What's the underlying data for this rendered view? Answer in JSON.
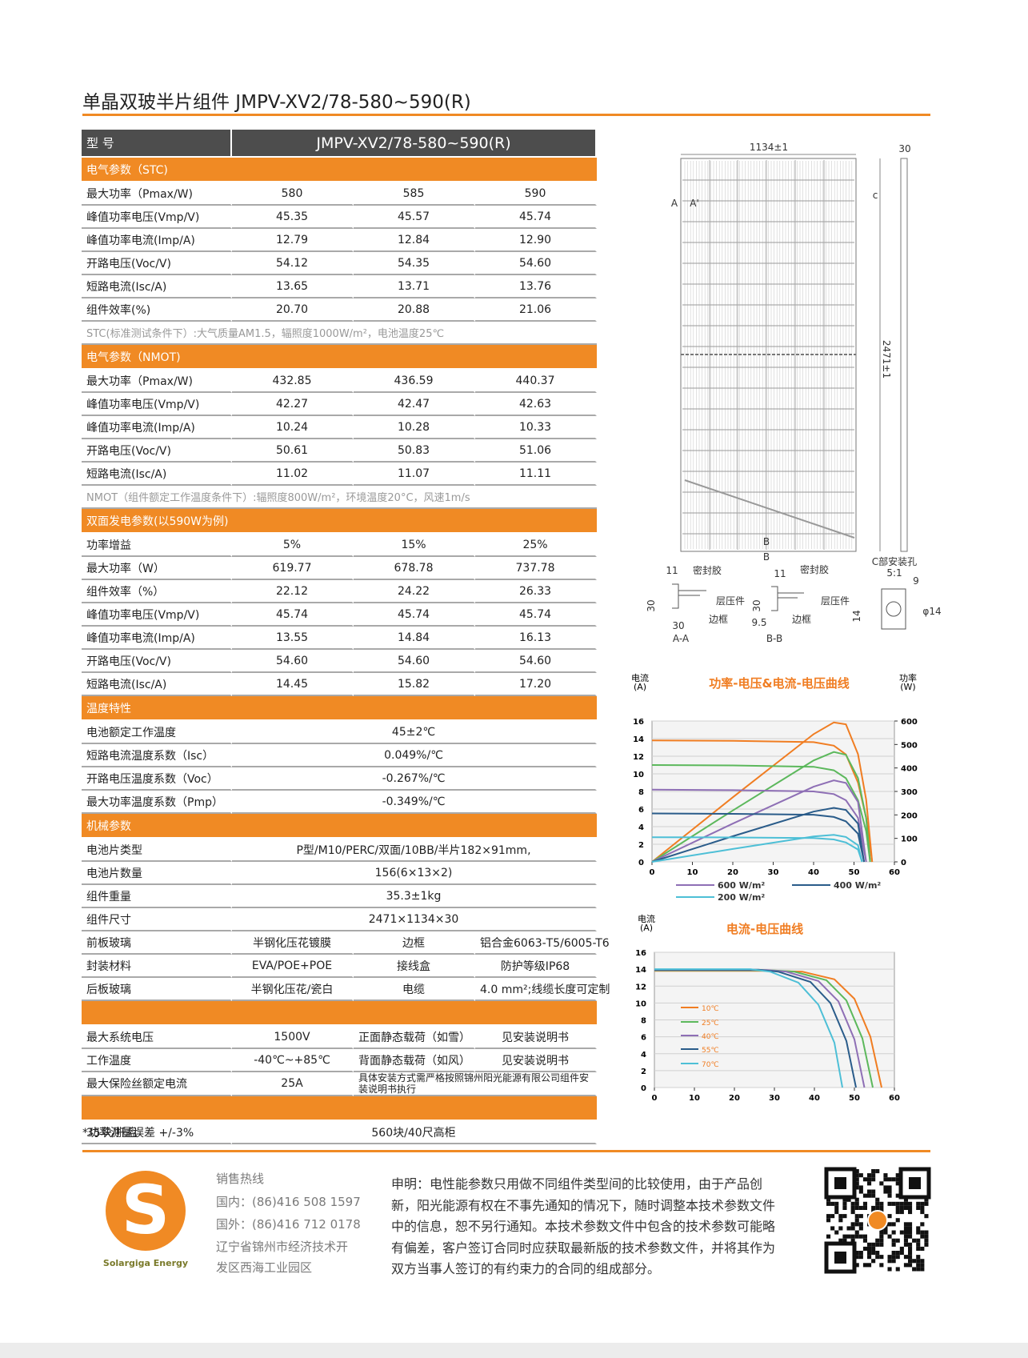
{
  "header": {
    "title": "单晶双玻半片组件  JMPV-XV2/78-580~590(R)"
  },
  "table": {
    "header": [
      "型 号",
      "JMPV-XV2/78-580~590(R)"
    ],
    "sections": [
      {
        "title": "电气参数（STC)",
        "rows": [
          [
            "最大功率（Pmax/W)",
            "580",
            "585",
            "590"
          ],
          [
            "峰值功率电压(Vmp/V)",
            "45.35",
            "45.57",
            "45.74"
          ],
          [
            "峰值功率电流(Imp/A)",
            "12.79",
            "12.84",
            "12.90"
          ],
          [
            "开路电压(Voc/V)",
            "54.12",
            "54.35",
            "54.60"
          ],
          [
            "短路电流(Isc/A)",
            "13.65",
            "13.71",
            "13.76"
          ],
          [
            "组件效率(%)",
            "20.70",
            "20.88",
            "21.06"
          ]
        ],
        "note": "STC(标准测试条件下）:大气质量AM1.5，辐照度1000W/m²，电池温度25℃"
      },
      {
        "title": "电气参数（NMOT)",
        "rows": [
          [
            "最大功率（Pmax/W)",
            "432.85",
            "436.59",
            "440.37"
          ],
          [
            "峰值功率电压(Vmp/V)",
            "42.27",
            "42.47",
            "42.63"
          ],
          [
            "峰值功率电流(Imp/A)",
            "10.24",
            "10.28",
            "10.33"
          ],
          [
            "开路电压(Voc/V)",
            "50.61",
            "50.83",
            "51.06"
          ],
          [
            "短路电流(Isc/A)",
            "11.02",
            "11.07",
            "11.11"
          ]
        ],
        "note": "NMOT（组件额定工作温度条件下）:辐照度800W/m²，环境温度20°C，风速1m/s"
      },
      {
        "title": "双面发电参数(以590W为例)",
        "rows": [
          [
            "功率增益",
            "5%",
            "15%",
            "25%"
          ],
          [
            "最大功率（W）",
            "619.77",
            "678.78",
            "737.78"
          ],
          [
            "组件效率（%）",
            "22.12",
            "24.22",
            "26.33"
          ],
          [
            "峰值功率电压(Vmp/V)",
            "45.74",
            "45.74",
            "45.74"
          ],
          [
            "峰值功率电流(Imp/A)",
            "13.55",
            "14.84",
            "16.13"
          ],
          [
            "开路电压(Voc/V)",
            "54.60",
            "54.60",
            "54.60"
          ],
          [
            "短路电流(Isc/A)",
            "14.45",
            "15.82",
            "17.20"
          ]
        ]
      },
      {
        "title": "温度特性",
        "rows": [
          [
            "电池额定工作温度",
            "45±2℃"
          ],
          [
            "短路电流温度系数（Isc）",
            "0.049%/℃"
          ],
          [
            "开路电压温度系数（Voc）",
            "-0.267%/℃"
          ],
          [
            "最大功率温度系数（Pmp）",
            "-0.349%/℃"
          ]
        ]
      },
      {
        "title": "机械参数",
        "rows": [
          [
            "电池片类型",
            "P型/M10/PERC/双面/10BB/半片182×91mm,"
          ],
          [
            "电池片数量",
            "156(6×13×2)"
          ],
          [
            "组件重量",
            "35.3±1kg"
          ],
          [
            "组件尺寸",
            "2471×1134×30"
          ],
          [
            "前板玻璃",
            "半钢化压花镀膜",
            "边框",
            "铝合金6063-T5/6005-T6"
          ],
          [
            "封装材料",
            "EVA/POE+POE",
            "接线盒",
            "防护等级IP68"
          ],
          [
            "后板玻璃",
            "半钢化压花/瓷白",
            "电缆",
            "4.0 mm²;线缆长度可定制"
          ]
        ]
      },
      {
        "rows": [
          [
            "最大系统电压",
            "1500V",
            "正面静态载荷（如雪）",
            "见安装说明书"
          ],
          [
            "工作温度",
            "-40℃~+85℃",
            "背面静态载荷（如风）",
            "见安装说明书"
          ],
          [
            "最大保险丝额定电流",
            "25A",
            "具体安装方式需严格按照锦州阳光能源有限公司组件安装说明书执行"
          ]
        ]
      },
      {
        "rows": [
          [
            "35块/托盘",
            "560块/40尺高柜"
          ]
        ]
      }
    ]
  },
  "footnote": "*功率测量误差  +/-3%",
  "drawing": {
    "labels": [
      "1134±1",
      "30",
      "2471±1",
      "A",
      "A'",
      "c",
      "B",
      "B",
      "C部安装孔",
      "5:1",
      "9",
      "φ14",
      "14",
      "11",
      "密封胶",
      "层压件",
      "30",
      "30",
      "边框",
      "A-A",
      "11",
      "密封胶",
      "层压件",
      "30",
      "9.5",
      "边框",
      "B-B"
    ]
  },
  "chart_data": [
    {
      "type": "line",
      "title": "功率-电压&电流-电压曲线",
      "y_label": "电流",
      "y_unit": "(A)",
      "y2_label": "功率",
      "y2_unit": "(W)",
      "xlim": [
        0,
        60
      ],
      "xticks": [
        0,
        10,
        20,
        30,
        40,
        50,
        60
      ],
      "ylim": [
        0,
        16
      ],
      "yticks": [
        0,
        2,
        4,
        6,
        8,
        10,
        12,
        14,
        16
      ],
      "y2lim": [
        0,
        600
      ],
      "y2ticks": [
        0,
        100,
        200,
        300,
        400,
        500,
        600
      ],
      "grid": true,
      "legend": "bottom",
      "series": [
        {
          "color": "#f07d22",
          "x": [
            0,
            20,
            40,
            45,
            48,
            51,
            53,
            54.5
          ],
          "values": [
            13.8,
            13.75,
            13.6,
            13.2,
            12.2,
            9,
            5,
            0
          ]
        },
        {
          "color": "#f07d22",
          "axis": "y2",
          "x": [
            0,
            20,
            40,
            45,
            48,
            51,
            53,
            54.5
          ],
          "values": [
            0,
            275,
            544,
            594,
            586,
            459,
            265,
            0
          ]
        },
        {
          "color": "#5cb85c",
          "x": [
            0,
            20,
            40,
            45,
            48,
            51,
            53,
            54
          ],
          "values": [
            11,
            10.95,
            10.8,
            10.4,
            9.5,
            7,
            3.5,
            0
          ]
        },
        {
          "color": "#5cb85c",
          "axis": "y2",
          "x": [
            0,
            20,
            40,
            45,
            48,
            51,
            53,
            54
          ],
          "values": [
            0,
            219,
            432,
            468,
            456,
            357,
            186,
            0
          ]
        },
        {
          "name": "600 W/m²",
          "color": "#8e6fb5",
          "x": [
            0,
            20,
            40,
            45,
            48,
            51,
            53
          ],
          "values": [
            8.2,
            8.15,
            8.0,
            7.7,
            7,
            5,
            0
          ]
        },
        {
          "color": "#8e6fb5",
          "axis": "y2",
          "x": [
            0,
            20,
            40,
            45,
            48,
            51,
            53
          ],
          "values": [
            0,
            163,
            320,
            347,
            336,
            255,
            0
          ]
        },
        {
          "name": "400 W/m²",
          "color": "#2a5c8a",
          "x": [
            0,
            20,
            40,
            45,
            48,
            51,
            52.5
          ],
          "values": [
            5.5,
            5.45,
            5.35,
            5.1,
            4.6,
            3.2,
            0
          ]
        },
        {
          "color": "#2a5c8a",
          "axis": "y2",
          "x": [
            0,
            20,
            40,
            45,
            48,
            51,
            52.5
          ],
          "values": [
            0,
            109,
            214,
            230,
            221,
            163,
            0
          ]
        },
        {
          "name": "200 W/m²",
          "color": "#4dbfd6",
          "x": [
            0,
            20,
            40,
            45,
            48,
            51,
            52
          ],
          "values": [
            2.8,
            2.77,
            2.7,
            2.55,
            2.2,
            1.4,
            0
          ]
        },
        {
          "color": "#4dbfd6",
          "axis": "y2",
          "x": [
            0,
            20,
            40,
            45,
            48,
            51,
            52
          ],
          "values": [
            0,
            55,
            108,
            115,
            106,
            71,
            0
          ]
        }
      ]
    },
    {
      "type": "line",
      "title": "电流-电压曲线",
      "y_label": "电流",
      "y_unit": "(A)",
      "xlim": [
        0,
        60
      ],
      "xticks": [
        0,
        10,
        20,
        30,
        40,
        50,
        60
      ],
      "ylim": [
        0,
        16
      ],
      "yticks": [
        0,
        2,
        4,
        6,
        8,
        10,
        12,
        14,
        16
      ],
      "grid": true,
      "legend": "left",
      "series": [
        {
          "name": "10℃",
          "color": "#f07d22",
          "x": [
            0,
            30,
            37,
            45,
            50,
            54,
            56.8
          ],
          "values": [
            13.8,
            13.8,
            13.7,
            12.8,
            10.5,
            6,
            0
          ]
        },
        {
          "name": "25℃",
          "color": "#5cb85c",
          "x": [
            0,
            30,
            35,
            43,
            48,
            52,
            54.6
          ],
          "values": [
            13.85,
            13.85,
            13.7,
            12.7,
            10.3,
            5.8,
            0
          ]
        },
        {
          "name": "40℃",
          "color": "#8e6fb5",
          "x": [
            0,
            28,
            33,
            41,
            46,
            50,
            52.5
          ],
          "values": [
            13.9,
            13.9,
            13.7,
            12.6,
            10.2,
            5.7,
            0
          ]
        },
        {
          "name": "55℃",
          "color": "#2a5c8a",
          "x": [
            0,
            26,
            31,
            39,
            44,
            48,
            50.4
          ],
          "values": [
            13.95,
            13.95,
            13.7,
            12.5,
            10,
            5.5,
            0
          ]
        },
        {
          "name": "70℃",
          "color": "#4dbfd6",
          "x": [
            0,
            24,
            29,
            36,
            41,
            45,
            47
          ],
          "values": [
            14.0,
            14.0,
            13.7,
            12.4,
            9.8,
            5.3,
            0
          ]
        }
      ]
    }
  ],
  "footer": {
    "logo_letter": "S",
    "logo_text": "Solargiga Energy",
    "contact": [
      "销售热线",
      "国内：(86)416 508 1597",
      "国外：(86)416 712 0178",
      "辽宁省锦州市经济技术开",
      "发区西海工业园区"
    ],
    "statement": [
      "申明：电性能参数只用做不同组件类型间的比较使用，由于产品创",
      "新，阳光能源有权在不事先通知的情况下，随时调整本技术参数文件",
      "中的信息，恕不另行通知。本技术参数文件中包含的技术参数可能略",
      "有偏差，客户签订合同时应获取最新版的技术参数文件，并将其作为",
      "双方当事人签订的有约束力的合同的组成部分。"
    ]
  }
}
